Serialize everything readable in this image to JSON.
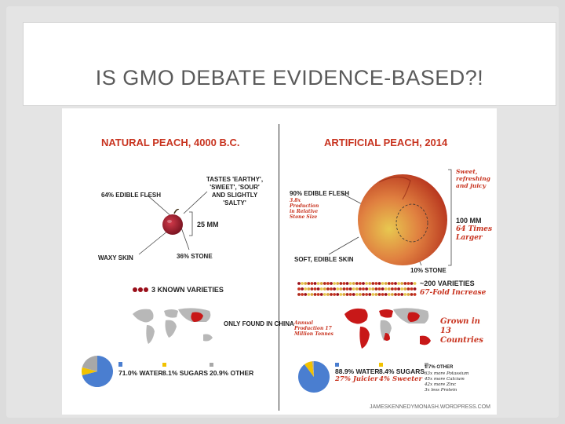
{
  "slide": {
    "title": "IS GMO DEBATE EVIDENCE-BASED?!"
  },
  "infographic": {
    "natural": {
      "heading": "NATURAL PEACH, 4000 B.C.",
      "edible_flesh": "64% EDIBLE FLESH",
      "tastes": "TASTES 'EARTHY', 'SWEET', 'SOUR' AND SLIGHTLY 'SALTY'",
      "size": "25 MM",
      "waxy_skin": "WAXY SKIN",
      "stone": "36% STONE",
      "varieties": "3 KNOWN VARIETIES",
      "only_found": "ONLY FOUND IN CHINA",
      "water": "71.0% WATER",
      "sugars": "8.1% SUGARS",
      "other": "20.9% OTHER",
      "pie": {
        "water": 71.0,
        "sugars": 8.1,
        "other": 20.9
      }
    },
    "artificial": {
      "heading": "ARTIFICIAL PEACH, 2014",
      "edible_flesh": "90% EDIBLE FLESH",
      "production_note": "3.8x Production in Relative Stone Size",
      "sweet_note": "Sweet, refreshing and juicy",
      "size": "100 MM",
      "size_note": "64 Times Larger",
      "soft_skin": "SOFT, EDIBLE SKIN",
      "stone": "10% STONE",
      "varieties": "~200 VARIETIES",
      "varieties_note": "67-Fold Increase",
      "annual_production": "Annual Production 17 Million Tonnes",
      "grown_in": "Grown in 13 Countries",
      "water": "88.9% WATER",
      "water_note": "27% Juicier",
      "sugars": "8.4% SUGARS",
      "sugars_note": "4% Sweeter",
      "other": "1.7% OTHER",
      "other_notes": [
        "63x more Potassium",
        "45x more Calcium",
        "42x more Zinc",
        "3x less Protein"
      ],
      "pie": {
        "water": 88.9,
        "sugars": 8.4,
        "other": 1.7
      }
    },
    "credit": "JAMESKENNEDYMONASH.WORDPRESS.COM"
  },
  "colors": {
    "accent_red": "#c8331f",
    "water_blue": "#4a7ed0",
    "sugar_yellow": "#f2c200",
    "other_gray": "#a8a8a8",
    "map_gray": "#b8b8b8",
    "map_red": "#c81818"
  }
}
